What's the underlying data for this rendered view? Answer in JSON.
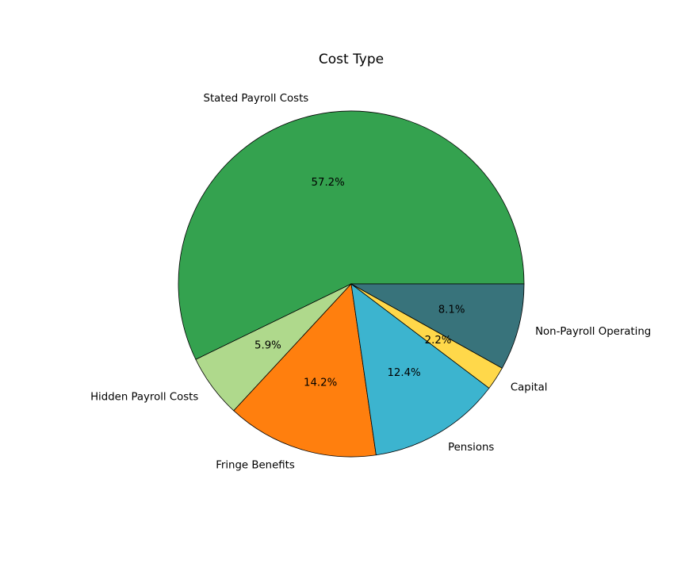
{
  "chart_data": {
    "type": "pie",
    "title": "Cost Type",
    "slices": [
      {
        "label": "Stated Payroll Costs",
        "value": 57.2,
        "pct_label": "57.2%",
        "color": "#34a24f"
      },
      {
        "label": "Hidden Payroll Costs",
        "value": 5.9,
        "pct_label": "5.9%",
        "color": "#afd98c"
      },
      {
        "label": "Fringe Benefits",
        "value": 14.2,
        "pct_label": "14.2%",
        "color": "#ff7f0e"
      },
      {
        "label": "Pensions",
        "value": 12.4,
        "pct_label": "12.4%",
        "color": "#3cb4cf"
      },
      {
        "label": "Capital",
        "value": 2.2,
        "pct_label": "2.2%",
        "color": "#ffd84a"
      },
      {
        "label": "Non-Payroll Operating",
        "value": 8.1,
        "pct_label": "8.1%",
        "color": "#38737b"
      }
    ],
    "start_angle_deg": 0,
    "direction": "counterclockwise"
  }
}
